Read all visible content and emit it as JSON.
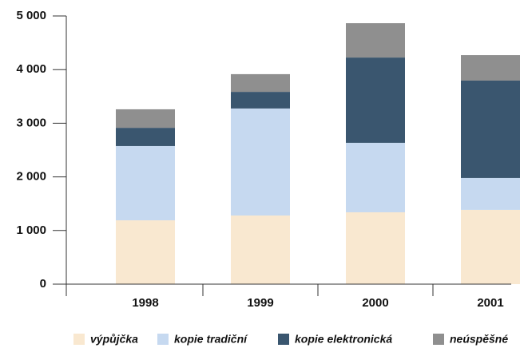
{
  "chart_data": {
    "type": "stacked_bar",
    "categories": [
      "1998",
      "1999",
      "2000",
      "2001"
    ],
    "series": [
      {
        "name": "výpůjčka",
        "color": "#f9e8d0",
        "values": [
          1190,
          1280,
          1340,
          1385
        ]
      },
      {
        "name": "kopie tradiční",
        "color": "#c6d9f0",
        "values": [
          1385,
          1995,
          1295,
          595
        ]
      },
      {
        "name": "kopie elektronická",
        "color": "#3a566f",
        "values": [
          340,
          310,
          1590,
          1815
        ]
      },
      {
        "name": "neúspěšné",
        "color": "#8f8f8f",
        "values": [
          345,
          330,
          640,
          475
        ]
      }
    ],
    "ylim": [
      0,
      5000
    ],
    "yticks": [
      0,
      {
        "value": 1000,
        "label": "1 000"
      },
      {
        "value": 2000,
        "label": "2 000"
      },
      {
        "value": 3000,
        "label": "3 000"
      },
      {
        "value": 4000,
        "label": "4 000"
      },
      {
        "value": 5000,
        "label": "5 000"
      }
    ],
    "legend": "bottom"
  }
}
